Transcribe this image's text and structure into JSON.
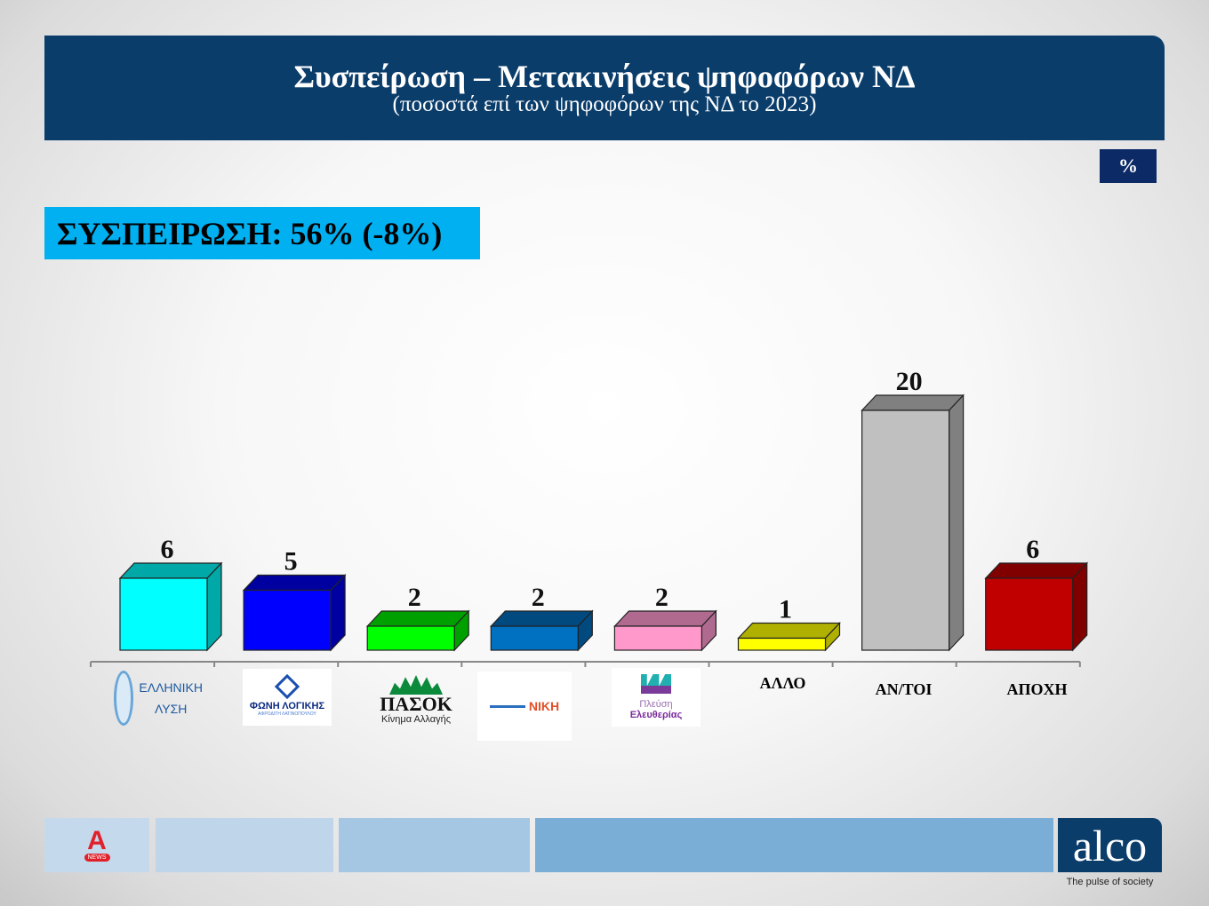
{
  "header": {
    "title": "Συσπείρωση – Μετακινήσεις ψηφοφόρων ΝΔ",
    "subtitle": "(ποσοστά επί των ψηφοφόρων της ΝΔ το 2023)"
  },
  "unit_badge": "%",
  "cohesion_label": "ΣΥΣΠΕΙΡΩΣΗ: 56% (-8%)",
  "chart_data": {
    "type": "bar",
    "title": "Συσπείρωση – Μετακινήσεις ψηφοφόρων ΝΔ",
    "categories": [
      "ΕΛΛΗΝΙΚΗ ΛΥΣΗ",
      "ΦΩΝΗ ΛΟΓΙΚΗΣ",
      "ΠΑΣΟΚ Κίνημα Αλλαγής",
      "ΝΙΚΗ",
      "Πλεύση Ελευθερίας",
      "ΑΛΛΟ",
      "ΑΝ/ΤΟΙ",
      "ΑΠΟΧΗ"
    ],
    "values": [
      6,
      5,
      2,
      2,
      2,
      1,
      20,
      6
    ],
    "colors": [
      "#00ffff",
      "#0000ff",
      "#00ff00",
      "#0070c0",
      "#ff99cc",
      "#ffff00",
      "#c0c0c0",
      "#c00000"
    ],
    "side_colors": [
      "#00a8a8",
      "#0000a0",
      "#00a000",
      "#004a80",
      "#b06a90",
      "#b0b000",
      "#808080",
      "#800000"
    ],
    "ylim": [
      0,
      20
    ],
    "grid": false,
    "xlabel": "",
    "ylabel": ""
  },
  "logos": {
    "elliniki_lysi": {
      "line1": "ΕΛΛΗΝΙΚΗ",
      "line2": "ΛΥΣΗ"
    },
    "foni_logikis": {
      "line1": "ΦΩΝΗ ΛΟΓΙΚΗΣ",
      "line2": "ΑΦΡΟΔΙΤΗ ΛΑΤΙΝΟΠΟΥΛΟΥ"
    },
    "pasok": {
      "line1": "ΠΑΣΟΚ",
      "line2": "Κίνημα Αλλαγής"
    },
    "niki": {
      "line1": "ΝΙΚΗ"
    },
    "plefsi": {
      "line1": "Πλεύση",
      "line2": "Ελευθερίας"
    }
  },
  "text_labels": [
    "ΑΛΛΟ",
    "ΑΝ/ΤΟΙ",
    "ΑΠΟΧΗ"
  ],
  "footer": {
    "left_logo": "NEWS",
    "brand": "alco",
    "tagline": "The pulse of society",
    "colors": [
      "#c5d9ed",
      "#bfd5ea",
      "#a5c7e4",
      "#7aaed6"
    ]
  }
}
